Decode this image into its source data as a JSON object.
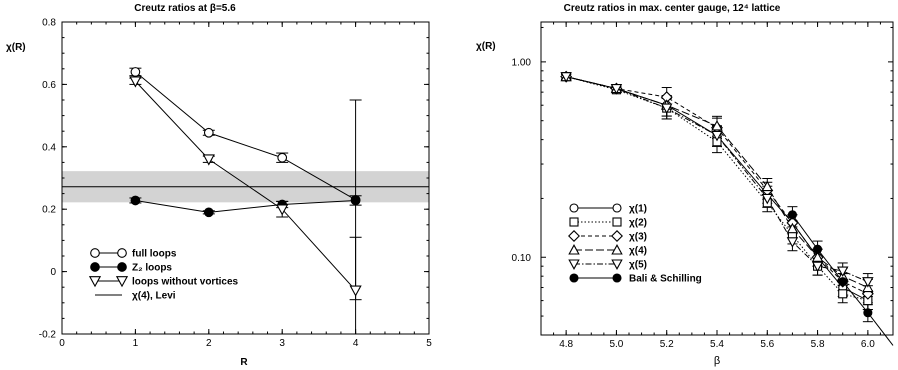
{
  "chart_data": [
    {
      "type": "scatter",
      "title": "Creutz ratios at β=5.6",
      "xlabel": "R",
      "ylabel": "χ(R)",
      "xlim": [
        0,
        5
      ],
      "ylim": [
        -0.2,
        0.8
      ],
      "xticks": [
        "0",
        "1",
        "2",
        "3",
        "4",
        "5"
      ],
      "yticks": [
        "-0.2",
        "0",
        "0.2",
        "0.4",
        "0.6",
        "0.8"
      ],
      "series": [
        {
          "name": "full loops",
          "marker": "circle-open",
          "line": "solid",
          "x": [
            1,
            2,
            3,
            4
          ],
          "y": [
            0.64,
            0.445,
            0.365,
            0.23
          ],
          "err": [
            0.012,
            0.008,
            0.015,
            0.32
          ]
        },
        {
          "name": "Z₂ loops",
          "marker": "circle-filled",
          "line": "solid",
          "x": [
            1,
            2,
            3,
            4
          ],
          "y": [
            0.228,
            0.19,
            0.215,
            0.228
          ],
          "err": [
            0.008,
            0.005,
            0.01,
            0.015
          ]
        },
        {
          "name": "loops without vortices",
          "marker": "triangle-down-open",
          "line": "solid",
          "x": [
            1,
            2,
            3,
            4
          ],
          "y": [
            0.61,
            0.36,
            0.2,
            -0.06
          ],
          "err": [
            0.01,
            0.01,
            0.025,
            0.17
          ]
        },
        {
          "name": "χ(4), Levi",
          "marker": "none",
          "line": "solid",
          "value": 0.272,
          "band": [
            0.222,
            0.322
          ]
        }
      ],
      "legend": "bottom-left"
    },
    {
      "type": "line",
      "title": "Creutz ratios in max. center gauge, 12⁴ lattice",
      "xlabel": "β",
      "ylabel": "χ(R)",
      "xlim": [
        4.7,
        6.1
      ],
      "ylim": [
        0.04,
        1.6
      ],
      "yscale": "log",
      "xticks": [
        "4.8",
        "5.0",
        "5.2",
        "5.4",
        "5.6",
        "5.8",
        "6.0"
      ],
      "yticks": [
        "0.10",
        "1.00"
      ],
      "series": [
        {
          "name": "χ(1)",
          "marker": "circle-open",
          "line": "solid",
          "x": [
            4.8,
            5.0,
            5.2,
            5.4,
            5.6,
            5.7,
            5.8,
            5.9,
            6.0
          ],
          "y": [
            0.84,
            0.73,
            0.6,
            0.42,
            0.21,
            0.15,
            0.1,
            0.07,
            0.06
          ]
        },
        {
          "name": "χ(2)",
          "marker": "square-open",
          "line": "dotted",
          "x": [
            4.8,
            5.0,
            5.2,
            5.4,
            5.6,
            5.7,
            5.8,
            5.9,
            6.0
          ],
          "y": [
            0.84,
            0.72,
            0.58,
            0.39,
            0.19,
            0.13,
            0.09,
            0.065,
            0.06
          ]
        },
        {
          "name": "χ(3)",
          "marker": "diamond-open",
          "line": "dashed",
          "x": [
            4.8,
            5.0,
            5.2,
            5.4,
            5.6,
            5.7,
            5.8,
            5.9,
            6.0
          ],
          "y": [
            0.84,
            0.73,
            0.66,
            0.46,
            0.22,
            0.15,
            0.1,
            0.075,
            0.065
          ]
        },
        {
          "name": "χ(4)",
          "marker": "triangle-up-open",
          "line": "long-dash",
          "x": [
            4.8,
            5.0,
            5.2,
            5.4,
            5.6,
            5.7,
            5.8,
            5.9,
            6.0
          ],
          "y": [
            0.84,
            0.73,
            0.6,
            0.47,
            0.23,
            0.14,
            0.1,
            0.08,
            0.07
          ]
        },
        {
          "name": "χ(5)",
          "marker": "triangle-down-open",
          "line": "dash-dot",
          "x": [
            4.8,
            5.0,
            5.2,
            5.4,
            5.6,
            5.7,
            5.8,
            5.9,
            6.0
          ],
          "y": [
            0.84,
            0.73,
            0.58,
            0.42,
            0.2,
            0.12,
            0.09,
            0.085,
            0.075
          ]
        },
        {
          "name": "Bali & Schilling",
          "marker": "circle-filled",
          "line": "solid",
          "x": [
            5.7,
            5.8,
            5.9,
            6.0
          ],
          "y": [
            0.165,
            0.11,
            0.075,
            0.052
          ]
        }
      ],
      "legend": "bottom-left"
    }
  ]
}
